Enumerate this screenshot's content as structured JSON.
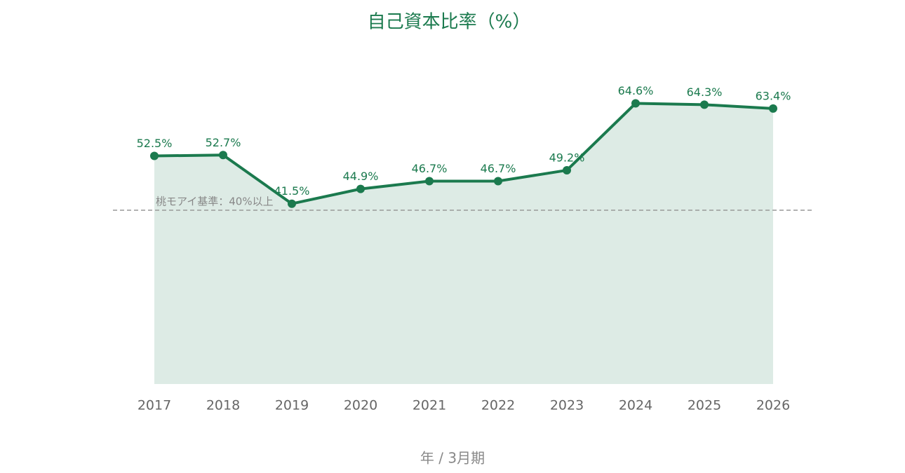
{
  "chart_data": {
    "type": "line",
    "title": "自己資本比率（%）",
    "x_label": "年 / 3月期",
    "categories": [
      "2017",
      "2018",
      "2019",
      "2020",
      "2021",
      "2022",
      "2023",
      "2024",
      "2025",
      "2026"
    ],
    "series": [
      {
        "color": "#1b7a4e",
        "values": [
          52.5,
          52.7,
          41.5,
          44.9,
          46.7,
          46.7,
          49.2,
          64.6,
          64.3,
          63.4
        ],
        "value_labels": [
          "52.5%",
          "52.7%",
          "41.5%",
          "44.9%",
          "46.7%",
          "46.7%",
          "49.2%",
          "64.6%",
          "64.3%",
          "63.4%"
        ]
      }
    ],
    "area": true,
    "ylim": [
      0,
      70
    ],
    "reference_line": {
      "value": 40,
      "label": "桃モアイ基準：40%以上"
    }
  }
}
